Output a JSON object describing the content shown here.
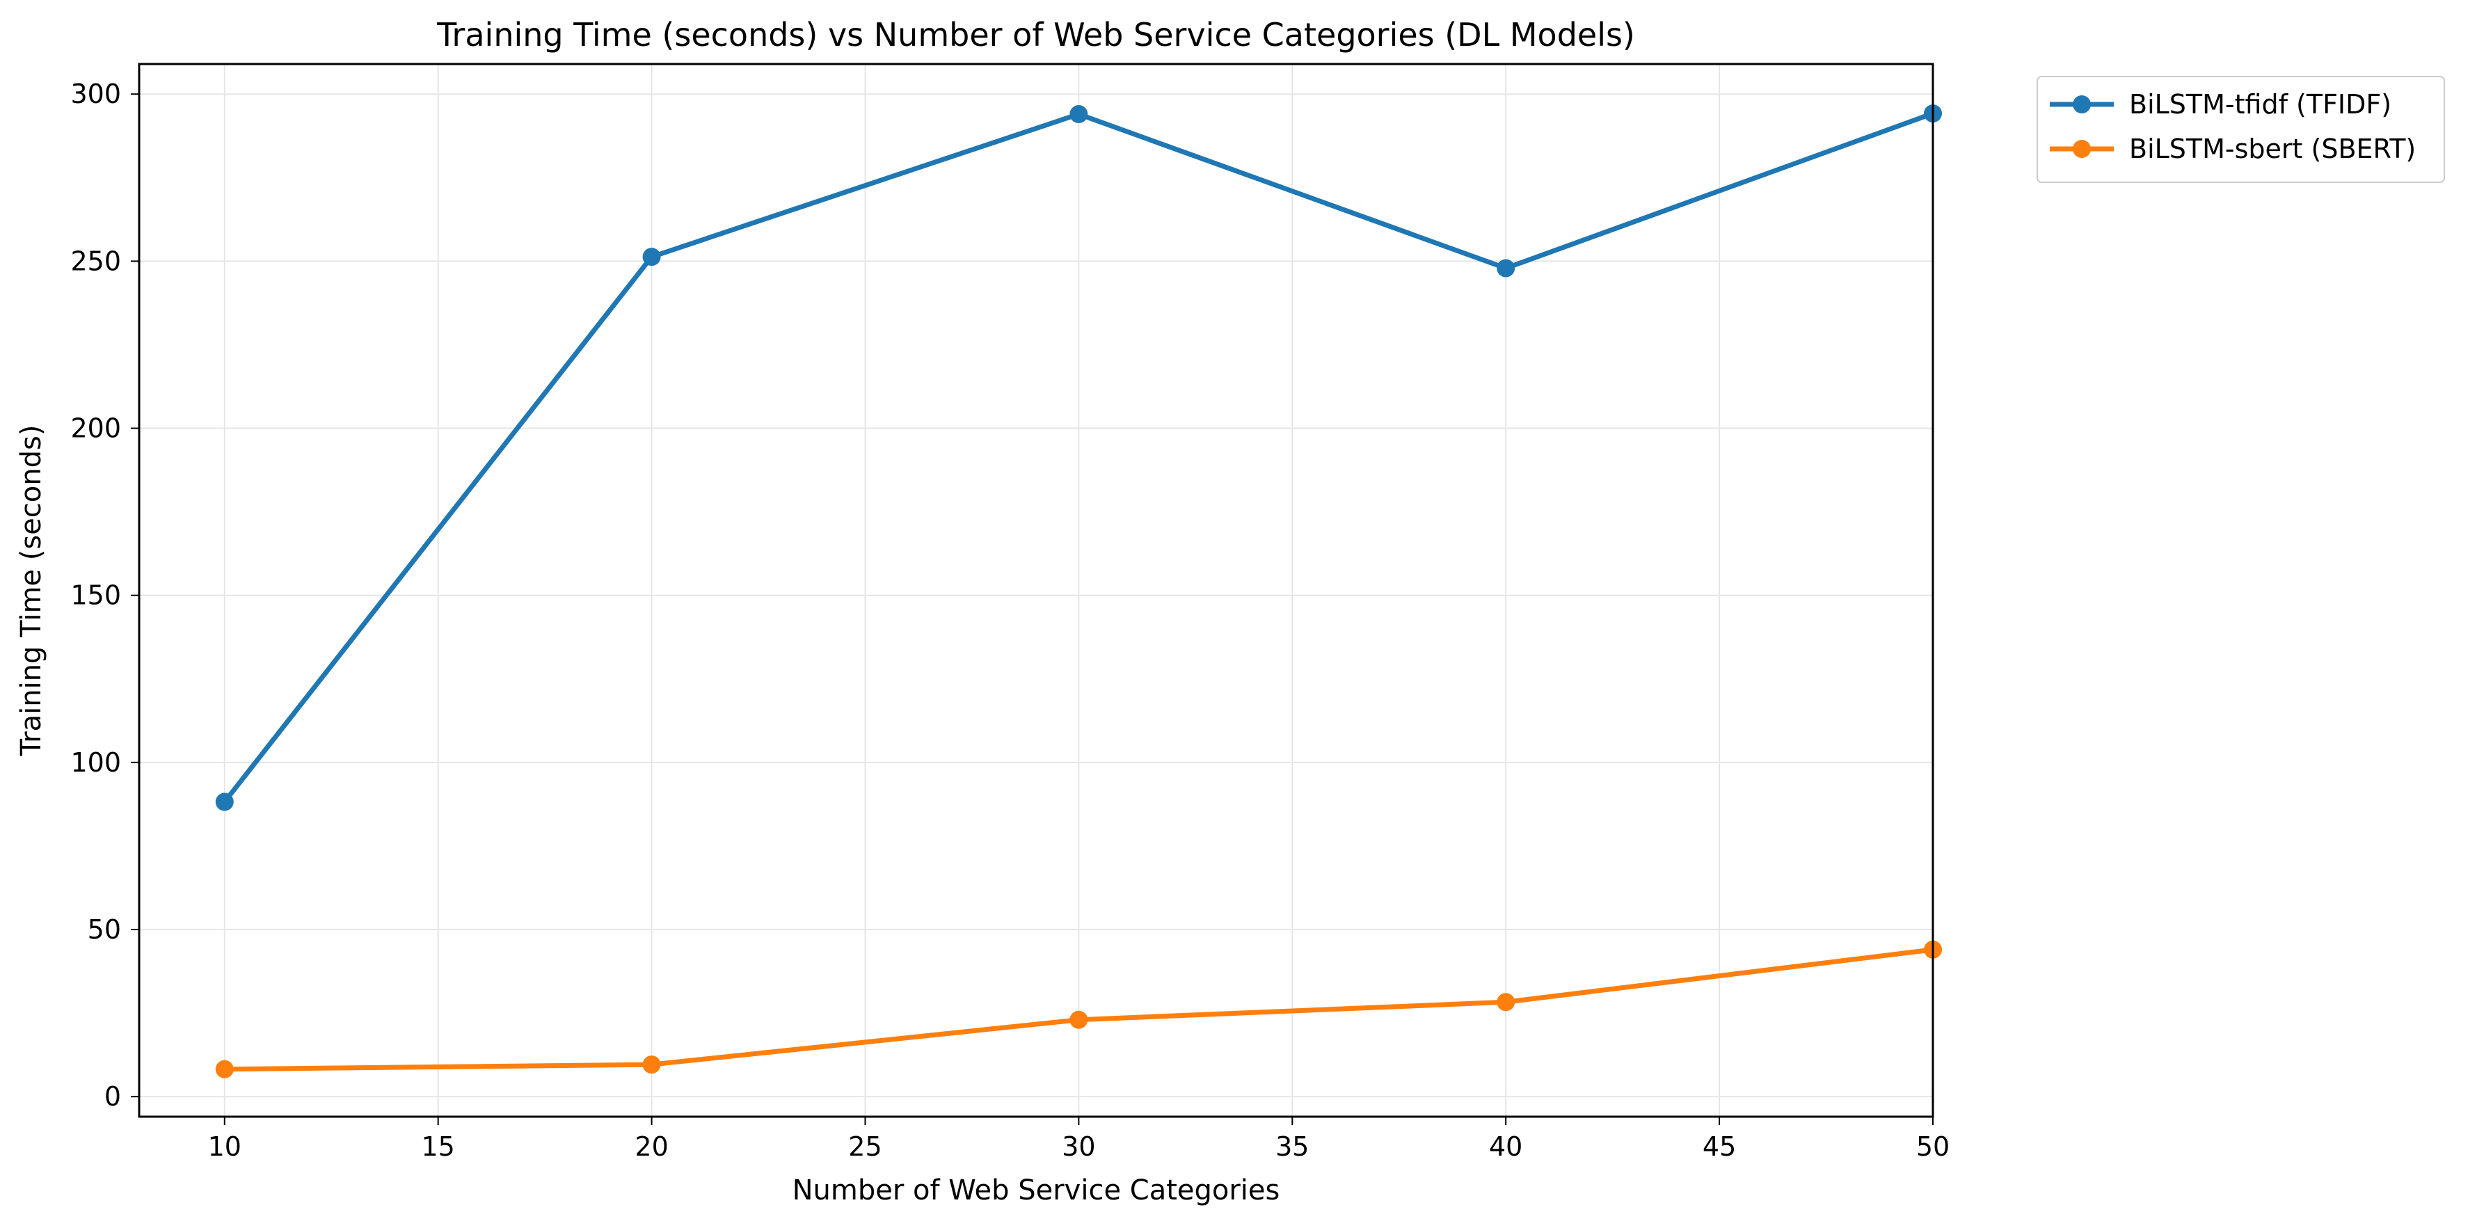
{
  "chart_data": {
    "type": "line",
    "title": "Training Time (seconds) vs Number of Web Service Categories (DL Models)",
    "xlabel": "Number of Web Service Categories",
    "ylabel": "Training Time (seconds)",
    "x": [
      10,
      20,
      30,
      40,
      50
    ],
    "xlim": [
      8,
      50
    ],
    "ylim": [
      -6,
      309
    ],
    "xticks": [
      10,
      15,
      20,
      25,
      30,
      35,
      40,
      45,
      50
    ],
    "yticks": [
      0,
      50,
      100,
      150,
      200,
      250,
      300
    ],
    "grid": true,
    "legend_position": "outside top-right",
    "series": [
      {
        "name": "BiLSTM-tfidf (TFIDF)",
        "color": "#1f77b4",
        "values": [
          88.2,
          251.3,
          294.0,
          247.9,
          294.2
        ]
      },
      {
        "name": "BiLSTM-sbert (SBERT)",
        "color": "#ff7f0e",
        "values": [
          8.2,
          9.6,
          23.0,
          28.3,
          44.0
        ]
      }
    ]
  }
}
